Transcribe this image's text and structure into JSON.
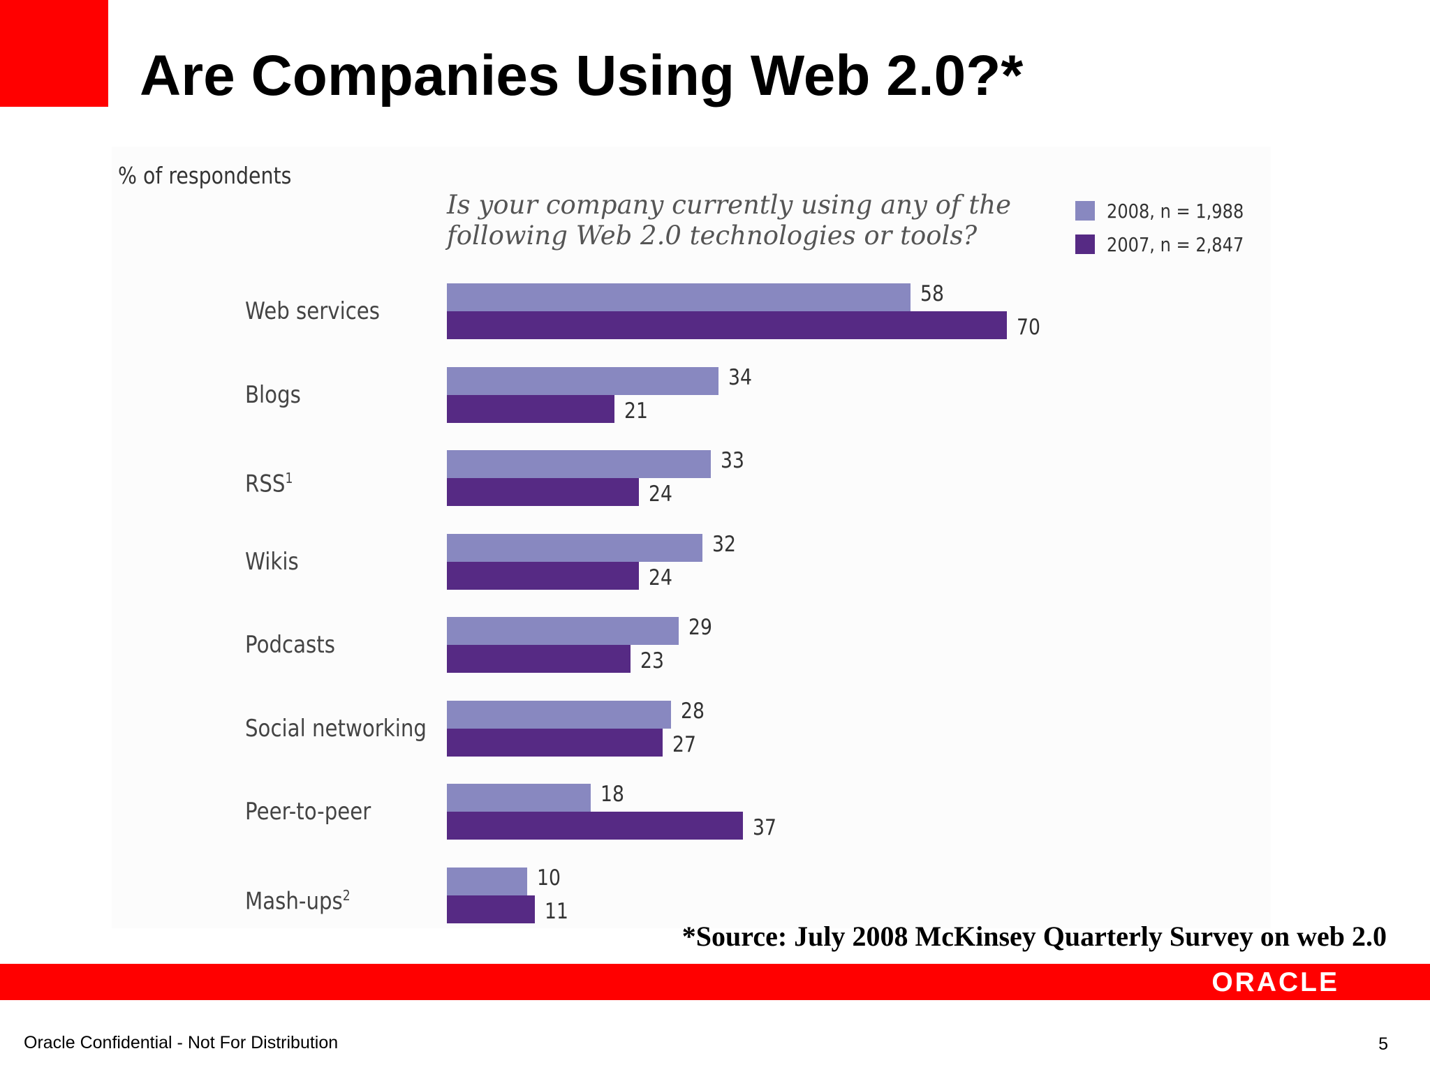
{
  "slide": {
    "title": "Are Companies Using Web 2.0?*",
    "source_note": "*Source: July 2008 McKinsey Quarterly Survey on web 2.0",
    "footer_text": "Oracle Confidential - Not For Distribution",
    "page_number": "5",
    "logo_text": "ORACLE"
  },
  "colors": {
    "accent_red": "#ff0000",
    "series_2008": "#8888c0",
    "series_2007": "#562a84"
  },
  "chart_data": {
    "type": "bar",
    "orientation": "horizontal",
    "title": "Is your company currently using any of the following Web 2.0 technologies or tools?",
    "unit_label": "% of respondents",
    "categories": [
      "Web services",
      "Blogs",
      "RSS",
      "Wikis",
      "Podcasts",
      "Social networking",
      "Peer-to-peer",
      "Mash-ups"
    ],
    "category_footnotes": [
      "",
      "",
      "1",
      "",
      "",
      "",
      "",
      "2"
    ],
    "series": [
      {
        "name": "2008, n = 1,988",
        "values": [
          58,
          34,
          33,
          32,
          29,
          28,
          18,
          10
        ]
      },
      {
        "name": "2007, n = 2,847",
        "values": [
          70,
          21,
          24,
          24,
          23,
          27,
          37,
          11
        ]
      }
    ],
    "legend_position": "top-right",
    "grid": false
  }
}
